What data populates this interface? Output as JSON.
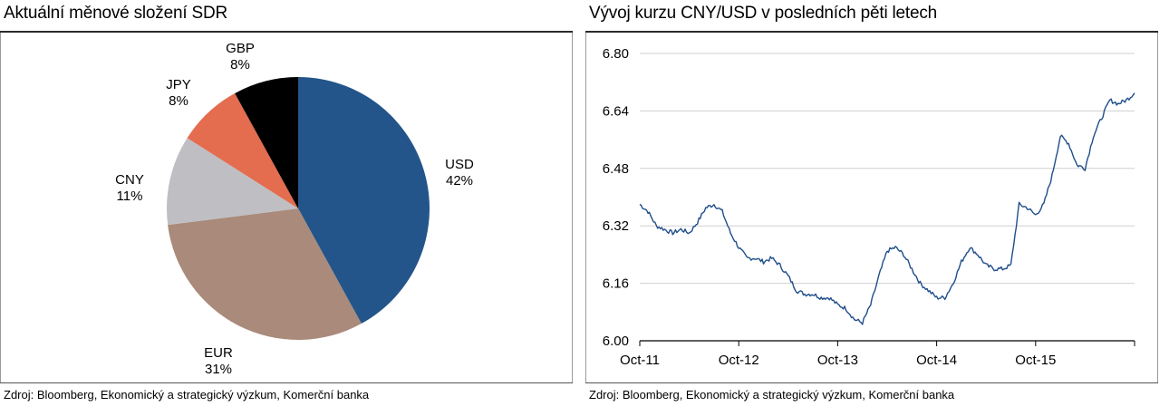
{
  "charts": [
    {
      "title": "Aktuální měnové složení SDR",
      "source": "Zdroj: Bloomberg, Ekonomický a strategický výzkum, Komerční banka"
    },
    {
      "title": "Vývoj kurzu CNY/USD v posledních pěti letech",
      "source": "Zdroj: Bloomberg, Ekonomický a strategický výzkum, Komerční banka"
    }
  ],
  "colors": {
    "USD": "#23558a",
    "EUR": "#a98a7b",
    "CNY": "#bfbfc3",
    "JPY": "#e46c4f",
    "GBP": "#000000",
    "line": "#1f4e8a",
    "grid": "#d0d0d0"
  },
  "chart_data": [
    {
      "type": "pie",
      "title": "Aktuální měnové složení SDR",
      "slices": [
        {
          "label": "USD",
          "value": 42,
          "value_label": "42%"
        },
        {
          "label": "EUR",
          "value": 31,
          "value_label": "31%"
        },
        {
          "label": "CNY",
          "value": 11,
          "value_label": "11%"
        },
        {
          "label": "JPY",
          "value": 8,
          "value_label": "8%"
        },
        {
          "label": "GBP",
          "value": 8,
          "value_label": "8%"
        }
      ]
    },
    {
      "type": "line",
      "title": "Vývoj kurzu CNY/USD v posledních pěti letech",
      "x_tick_labels": [
        "Oct-11",
        "Oct-12",
        "Oct-13",
        "Oct-14",
        "Oct-15"
      ],
      "y_tick_labels": [
        "6.00",
        "6.16",
        "6.32",
        "6.48",
        "6.64",
        "6.80"
      ],
      "ylim": [
        6.0,
        6.8
      ],
      "xlim": [
        "2011-10",
        "2016-10"
      ],
      "grid": true,
      "series": [
        {
          "x": [
            "2011-10",
            "2011-11",
            "2011-12",
            "2012-01",
            "2012-02",
            "2012-03",
            "2012-04",
            "2012-05",
            "2012-06",
            "2012-07",
            "2012-08",
            "2012-09",
            "2012-10",
            "2012-11",
            "2012-12",
            "2013-01",
            "2013-02",
            "2013-03",
            "2013-04",
            "2013-05",
            "2013-06",
            "2013-07",
            "2013-08",
            "2013-09",
            "2013-10",
            "2013-11",
            "2013-12",
            "2014-01",
            "2014-02",
            "2014-03",
            "2014-04",
            "2014-05",
            "2014-06",
            "2014-07",
            "2014-08",
            "2014-09",
            "2014-10",
            "2014-11",
            "2014-12",
            "2015-01",
            "2015-02",
            "2015-03",
            "2015-04",
            "2015-05",
            "2015-06",
            "2015-07",
            "2015-08",
            "2015-09",
            "2015-10",
            "2015-11",
            "2015-12",
            "2016-01",
            "2016-02",
            "2016-03",
            "2016-04",
            "2016-05",
            "2016-06",
            "2016-07",
            "2016-08",
            "2016-09",
            "2016-10"
          ],
          "y": [
            6.38,
            6.36,
            6.32,
            6.31,
            6.3,
            6.31,
            6.3,
            6.33,
            6.37,
            6.38,
            6.36,
            6.3,
            6.26,
            6.23,
            6.23,
            6.22,
            6.23,
            6.21,
            6.18,
            6.14,
            6.13,
            6.13,
            6.12,
            6.12,
            6.1,
            6.09,
            6.06,
            6.05,
            6.1,
            6.18,
            6.25,
            6.26,
            6.24,
            6.2,
            6.16,
            6.14,
            6.12,
            6.12,
            6.16,
            6.22,
            6.26,
            6.24,
            6.21,
            6.2,
            6.2,
            6.21,
            6.38,
            6.37,
            6.35,
            6.38,
            6.46,
            6.57,
            6.55,
            6.49,
            6.48,
            6.57,
            6.62,
            6.67,
            6.66,
            6.67,
            6.69
          ]
        }
      ]
    }
  ]
}
